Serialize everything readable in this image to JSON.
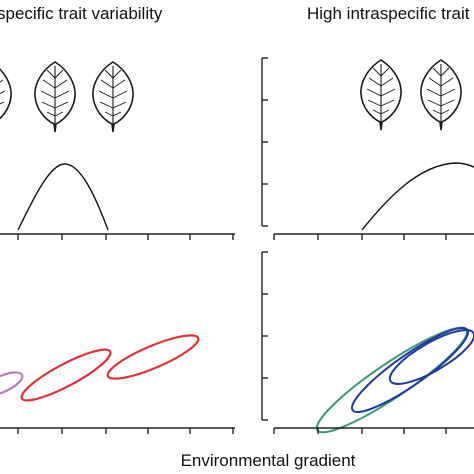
{
  "left_panel_title": "specific trait variability",
  "right_panel_title": "High intraspecific trait",
  "x_axis_label": "Environmental gradient",
  "colors": {
    "axis": "#222222",
    "curve": "#111111",
    "leaf_outline": "#1a1a1a",
    "ellipse_purple": "#b77bb6",
    "ellipse_red": "#e0323a",
    "ellipse_green": "#3a9b74",
    "ellipse_blue": "#1c3aa0"
  },
  "icons": [
    "leaf-icon"
  ]
}
